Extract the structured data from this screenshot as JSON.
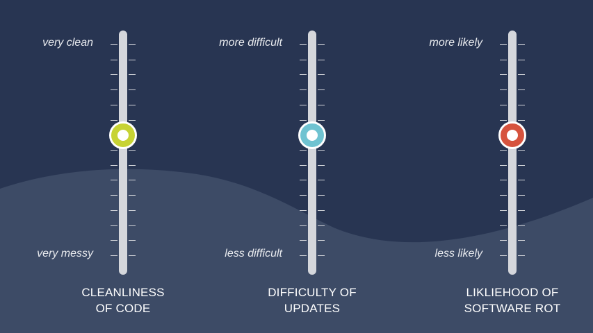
{
  "colors": {
    "background_top": "#283552",
    "background_wave": "#3d4b66",
    "track": "#d5d7dc"
  },
  "meters": [
    {
      "top_label": "very clean",
      "bottom_label": "very messy",
      "title_line1": "CLEANLINESS",
      "title_line2": "OF CODE",
      "knob_color": "#c7d334",
      "level": 0.57
    },
    {
      "top_label": "more difficult",
      "bottom_label": "less difficult",
      "title_line1": "DIFFICULTY OF",
      "title_line2": "UPDATES",
      "knob_color": "#6fc3d1",
      "level": 0.57
    },
    {
      "top_label": "more likely",
      "bottom_label": "less likely",
      "title_line1": "LIKLIEHOOD OF",
      "title_line2": "SOFTWARE ROT",
      "knob_color": "#d6533e",
      "level": 0.57
    }
  ]
}
